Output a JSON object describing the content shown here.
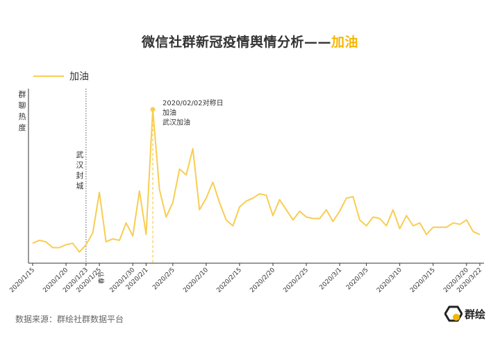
{
  "title": {
    "main": "微信社群新冠疫情舆情分析——",
    "accent": "加油"
  },
  "legend": {
    "label": "加油"
  },
  "source": "数据来源：群绘社群数据平台",
  "logo": {
    "text": "群绘"
  },
  "colors": {
    "line": "#f8cd50",
    "accent": "#f5b700",
    "axis": "#333333",
    "annotation_line": "#555555"
  },
  "chart_data": {
    "type": "line",
    "title": "微信社群新冠疫情舆情分析——加油",
    "ylabel": "群聊热度",
    "xlabel": "",
    "legend_position": "top-left",
    "x": [
      "2020/1/15",
      "2020/1/16",
      "2020/1/17",
      "2020/1/18",
      "2020/1/19",
      "2020/1/20",
      "2020/1/21",
      "2020/1/22",
      "2020/1/23",
      "2020/1/24",
      "2020/1/25",
      "2020/1/26",
      "2020/1/27",
      "2020/1/28",
      "2020/1/29",
      "2020/1/30",
      "2020/1/31",
      "2020/2/1",
      "2020/2/2",
      "2020/2/3",
      "2020/2/4",
      "2020/2/5",
      "2020/2/6",
      "2020/2/7",
      "2020/2/8",
      "2020/2/9",
      "2020/2/10",
      "2020/2/11",
      "2020/2/12",
      "2020/2/13",
      "2020/2/14",
      "2020/2/15",
      "2020/2/16",
      "2020/2/17",
      "2020/2/18",
      "2020/2/19",
      "2020/2/20",
      "2020/2/21",
      "2020/2/22",
      "2020/2/23",
      "2020/2/24",
      "2020/2/25",
      "2020/2/26",
      "2020/2/27",
      "2020/2/28",
      "2020/2/29",
      "2020/3/1",
      "2020/3/2",
      "2020/3/3",
      "2020/3/4",
      "2020/3/5",
      "2020/3/6",
      "2020/3/7",
      "2020/3/8",
      "2020/3/9",
      "2020/3/10",
      "2020/3/11",
      "2020/3/12",
      "2020/3/13",
      "2020/3/14",
      "2020/3/15",
      "2020/3/16",
      "2020/3/17",
      "2020/3/18",
      "2020/3/19",
      "2020/3/20",
      "2020/3/21",
      "2020/3/22"
    ],
    "series": [
      {
        "name": "加油",
        "values": [
          8,
          10,
          9,
          5,
          5,
          7,
          8,
          2,
          7,
          15,
          43,
          9,
          11,
          10,
          22,
          13,
          44,
          14,
          100,
          45,
          26,
          36,
          59,
          55,
          73,
          31,
          39,
          50,
          36,
          24,
          20,
          33,
          37,
          39,
          42,
          41,
          27,
          38,
          31,
          24,
          30,
          26,
          25,
          25,
          31,
          23,
          30,
          39,
          40,
          24,
          20,
          26,
          25,
          20,
          31,
          18,
          27,
          20,
          22,
          14,
          19,
          19,
          19,
          22,
          21,
          24,
          16,
          14
        ]
      }
    ],
    "xticks": [
      "2020/1/15",
      "2020/1/20",
      "2020/1/23",
      "2020/1/25",
      "2020/1/30",
      "2020/2/1",
      "2020/2/5",
      "2020/2/10",
      "2020/2/15",
      "2020/2/20",
      "2020/2/25",
      "2020/3/1",
      "2020/3/5",
      "2020/3/10",
      "2020/3/15",
      "2020/3/20",
      "2020/3/22"
    ],
    "ylim": [
      0,
      105
    ],
    "annotations": [
      {
        "date": "2020/1/23",
        "text": "武汉封城",
        "style": "dotted-line"
      },
      {
        "date": "2020/1/25",
        "text": "春节",
        "style": "tick-note"
      },
      {
        "date": "2020/2/2",
        "lines": [
          "2020/02/02对称日",
          "加油",
          "武汉加油"
        ],
        "style": "peak-marker"
      }
    ]
  }
}
